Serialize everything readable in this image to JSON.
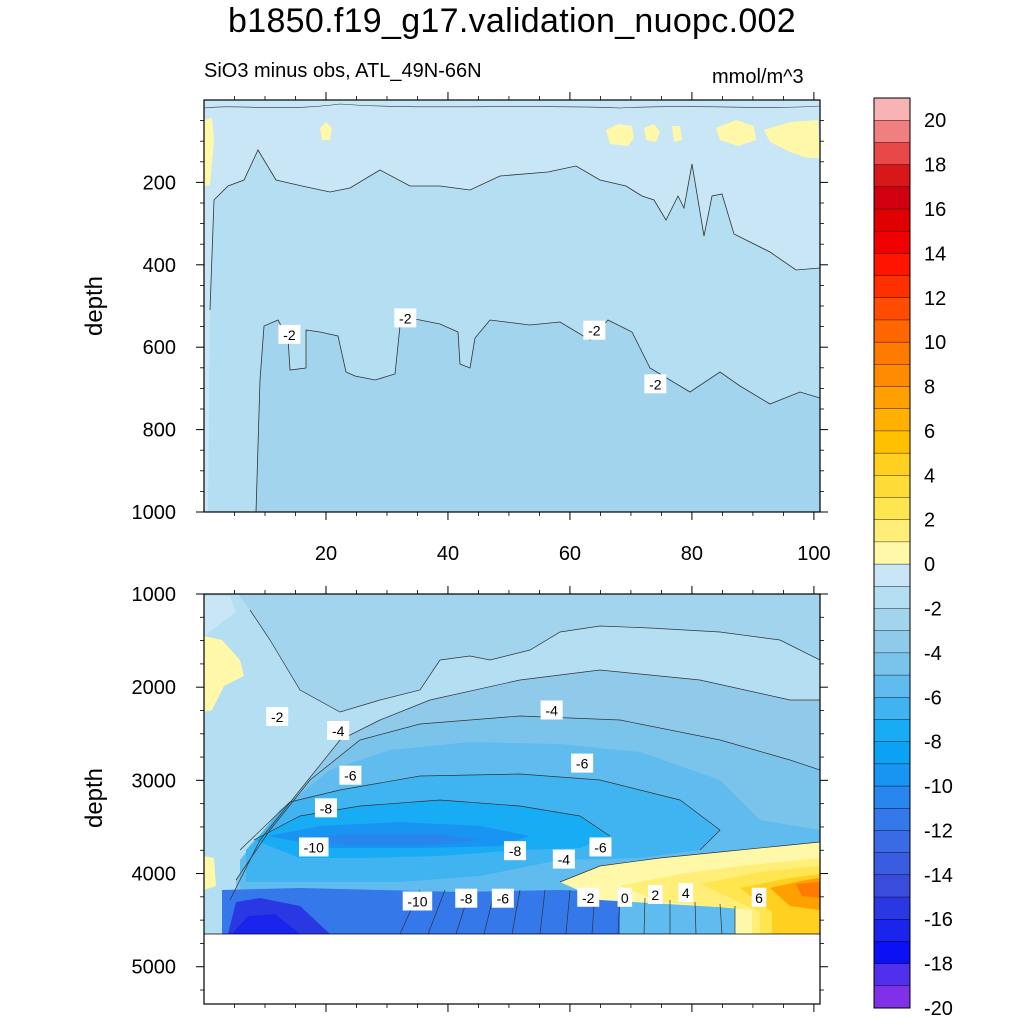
{
  "title": "b1850.f19_g17.validation_nuopc.002",
  "subtitle": "SiO3 minus obs, ATL_49N-66N",
  "units": "mmol/m^3",
  "chart_data": [
    {
      "type": "heatmap",
      "panel": "upper",
      "ylabel": "depth",
      "xlabel": "",
      "xlim": [
        0,
        101
      ],
      "ylim": [
        1000,
        0
      ],
      "x_ticks": [
        20,
        40,
        60,
        80,
        100
      ],
      "y_ticks": [
        200,
        400,
        600,
        800,
        1000
      ],
      "field_summary": "values mostly between -4 and 0; small positive patches (0 to 2) near surface at x≈20, x≈65-75, x≈85-100; -2 contour near 550-700 m",
      "contour_labels": [
        {
          "text": "-2",
          "x": 14,
          "y": 570
        },
        {
          "text": "-2",
          "x": 33,
          "y": 530
        },
        {
          "text": "-2",
          "x": 64,
          "y": 560
        },
        {
          "text": "-2",
          "x": 74,
          "y": 690
        }
      ]
    },
    {
      "type": "heatmap",
      "panel": "lower",
      "ylabel": "depth",
      "xlabel": "",
      "xlim": [
        0,
        101
      ],
      "ylim": [
        5400,
        1000
      ],
      "x_ticks": [
        20,
        40,
        60,
        80,
        100
      ],
      "y_ticks": [
        1000,
        2000,
        3000,
        4000,
        5000
      ],
      "missing_below_depth": 4600,
      "field_summary": "negative core (about -8 to -10) at 3300-3800 m for x 10-60; strongest negatives (about -14 to -16) near bottom at x≈10-20; positive tongue (0 to 8) at 3800-4600 m for x 60-101",
      "contour_labels": [
        {
          "text": "-2",
          "x": 12,
          "y": 2320
        },
        {
          "text": "-4",
          "x": 22,
          "y": 2470
        },
        {
          "text": "-6",
          "x": 24,
          "y": 2950
        },
        {
          "text": "-8",
          "x": 20,
          "y": 3300
        },
        {
          "text": "-10",
          "x": 18,
          "y": 3720
        },
        {
          "text": "-4",
          "x": 57,
          "y": 2250
        },
        {
          "text": "-6",
          "x": 62,
          "y": 2820
        },
        {
          "text": "-8",
          "x": 51,
          "y": 3760
        },
        {
          "text": "-4",
          "x": 59,
          "y": 3850
        },
        {
          "text": "-6",
          "x": 65,
          "y": 3720
        },
        {
          "text": "-10",
          "x": 35,
          "y": 4300
        },
        {
          "text": "-8",
          "x": 43,
          "y": 4270
        },
        {
          "text": "-6",
          "x": 49,
          "y": 4270
        },
        {
          "text": "-2",
          "x": 63,
          "y": 4260
        },
        {
          "text": "0",
          "x": 69,
          "y": 4260
        },
        {
          "text": "2",
          "x": 74,
          "y": 4230
        },
        {
          "text": "4",
          "x": 79,
          "y": 4210
        },
        {
          "text": "6",
          "x": 91,
          "y": 4260
        }
      ]
    }
  ],
  "colorbar": {
    "labels": [
      "20",
      "18",
      "16",
      "14",
      "12",
      "10",
      "8",
      "6",
      "4",
      "2",
      "0",
      "-2",
      "-4",
      "-6",
      "-8",
      "-10",
      "-12",
      "-14",
      "-16",
      "-18",
      "-20"
    ],
    "colors_top_to_bottom": [
      "#f8b4b4",
      "#f08080",
      "#e84848",
      "#d81818",
      "#d00010",
      "#e00000",
      "#f00000",
      "#ff1400",
      "#ff3000",
      "#ff4c00",
      "#ff6600",
      "#ff7a00",
      "#ff8c00",
      "#ffa000",
      "#ffb000",
      "#ffc000",
      "#ffd020",
      "#ffdc38",
      "#ffe650",
      "#ffee78",
      "#fff8a8",
      "#c8e6f6",
      "#b4def2",
      "#a2d4ee",
      "#90caea",
      "#7ac4ec",
      "#60bcee",
      "#40b4f0",
      "#18acf4",
      "#0ca2f4",
      "#1894f2",
      "#2886ee",
      "#3478ea",
      "#3a6ae4",
      "#3a5ce0",
      "#3a4cdc",
      "#2a38e4",
      "#1a24ec",
      "#0c10f4",
      "#5030ec",
      "#8030e8"
    ]
  }
}
